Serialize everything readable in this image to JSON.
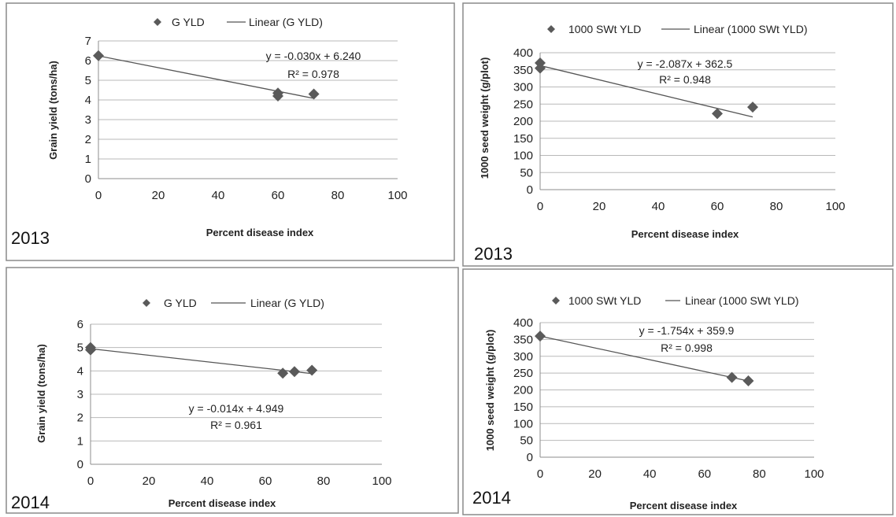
{
  "chart_data": [
    {
      "type": "scatter",
      "year": "2013",
      "xlabel": "Percent disease index",
      "ylabel": "Grain yield (tons/ha)",
      "xlim": [
        0,
        100
      ],
      "xstep": 20,
      "ylim": [
        0,
        7
      ],
      "ystep": 1,
      "legend": {
        "marker_label": "G YLD",
        "line_label": "Linear (G YLD)",
        "position": "top"
      },
      "trend": {
        "slope": -0.03,
        "intercept": 6.24,
        "equation": "y = -0.030x + 6.240",
        "r2": "R² = 0.978"
      },
      "points": [
        {
          "x": 0,
          "y": 6.25
        },
        {
          "x": 60,
          "y": 4.35
        },
        {
          "x": 60,
          "y": 4.2
        },
        {
          "x": 72,
          "y": 4.3
        }
      ]
    },
    {
      "type": "scatter",
      "year": "2013",
      "xlabel": "Percent disease index",
      "ylabel": "1000 seed weight (g/plot)",
      "xlim": [
        0,
        100
      ],
      "xstep": 20,
      "ylim": [
        0,
        400
      ],
      "ystep": 50,
      "legend": {
        "marker_label": "1000 SWt YLD",
        "line_label": "Linear (1000 SWt YLD)",
        "position": "top"
      },
      "trend": {
        "slope": -2.087,
        "intercept": 362.5,
        "equation": "y = -2.087x + 362.5",
        "r2": "R² = 0.948"
      },
      "points": [
        {
          "x": 0,
          "y": 370
        },
        {
          "x": 0,
          "y": 355
        },
        {
          "x": 60,
          "y": 222
        },
        {
          "x": 72,
          "y": 241
        }
      ]
    },
    {
      "type": "scatter",
      "year": "2014",
      "xlabel": "Percent disease index",
      "ylabel": "Grain yield (tons/ha)",
      "xlim": [
        0,
        100
      ],
      "xstep": 20,
      "ylim": [
        0,
        6
      ],
      "ystep": 1,
      "legend": {
        "marker_label": "G YLD",
        "line_label": "Linear (G YLD)",
        "position": "top"
      },
      "trend": {
        "slope": -0.014,
        "intercept": 4.949,
        "equation": "y = -0.014x + 4.949",
        "r2": "R² = 0.961"
      },
      "points": [
        {
          "x": 0,
          "y": 5.0
        },
        {
          "x": 0,
          "y": 4.9
        },
        {
          "x": 66,
          "y": 3.9
        },
        {
          "x": 70,
          "y": 3.97
        },
        {
          "x": 76,
          "y": 4.03
        }
      ]
    },
    {
      "type": "scatter",
      "year": "2014",
      "xlabel": "Percent disease index",
      "ylabel": "1000 seed weight (g/plot)",
      "xlim": [
        0,
        100
      ],
      "xstep": 20,
      "ylim": [
        0,
        400
      ],
      "ystep": 50,
      "legend": {
        "marker_label": "1000 SWt YLD",
        "line_label": "Linear (1000 SWt YLD)",
        "position": "top"
      },
      "trend": {
        "slope": -1.754,
        "intercept": 359.9,
        "equation": "y = -1.754x + 359.9",
        "r2": "R² = 0.998"
      },
      "points": [
        {
          "x": 0,
          "y": 360
        },
        {
          "x": 70,
          "y": 237
        },
        {
          "x": 76,
          "y": 227
        }
      ]
    }
  ]
}
